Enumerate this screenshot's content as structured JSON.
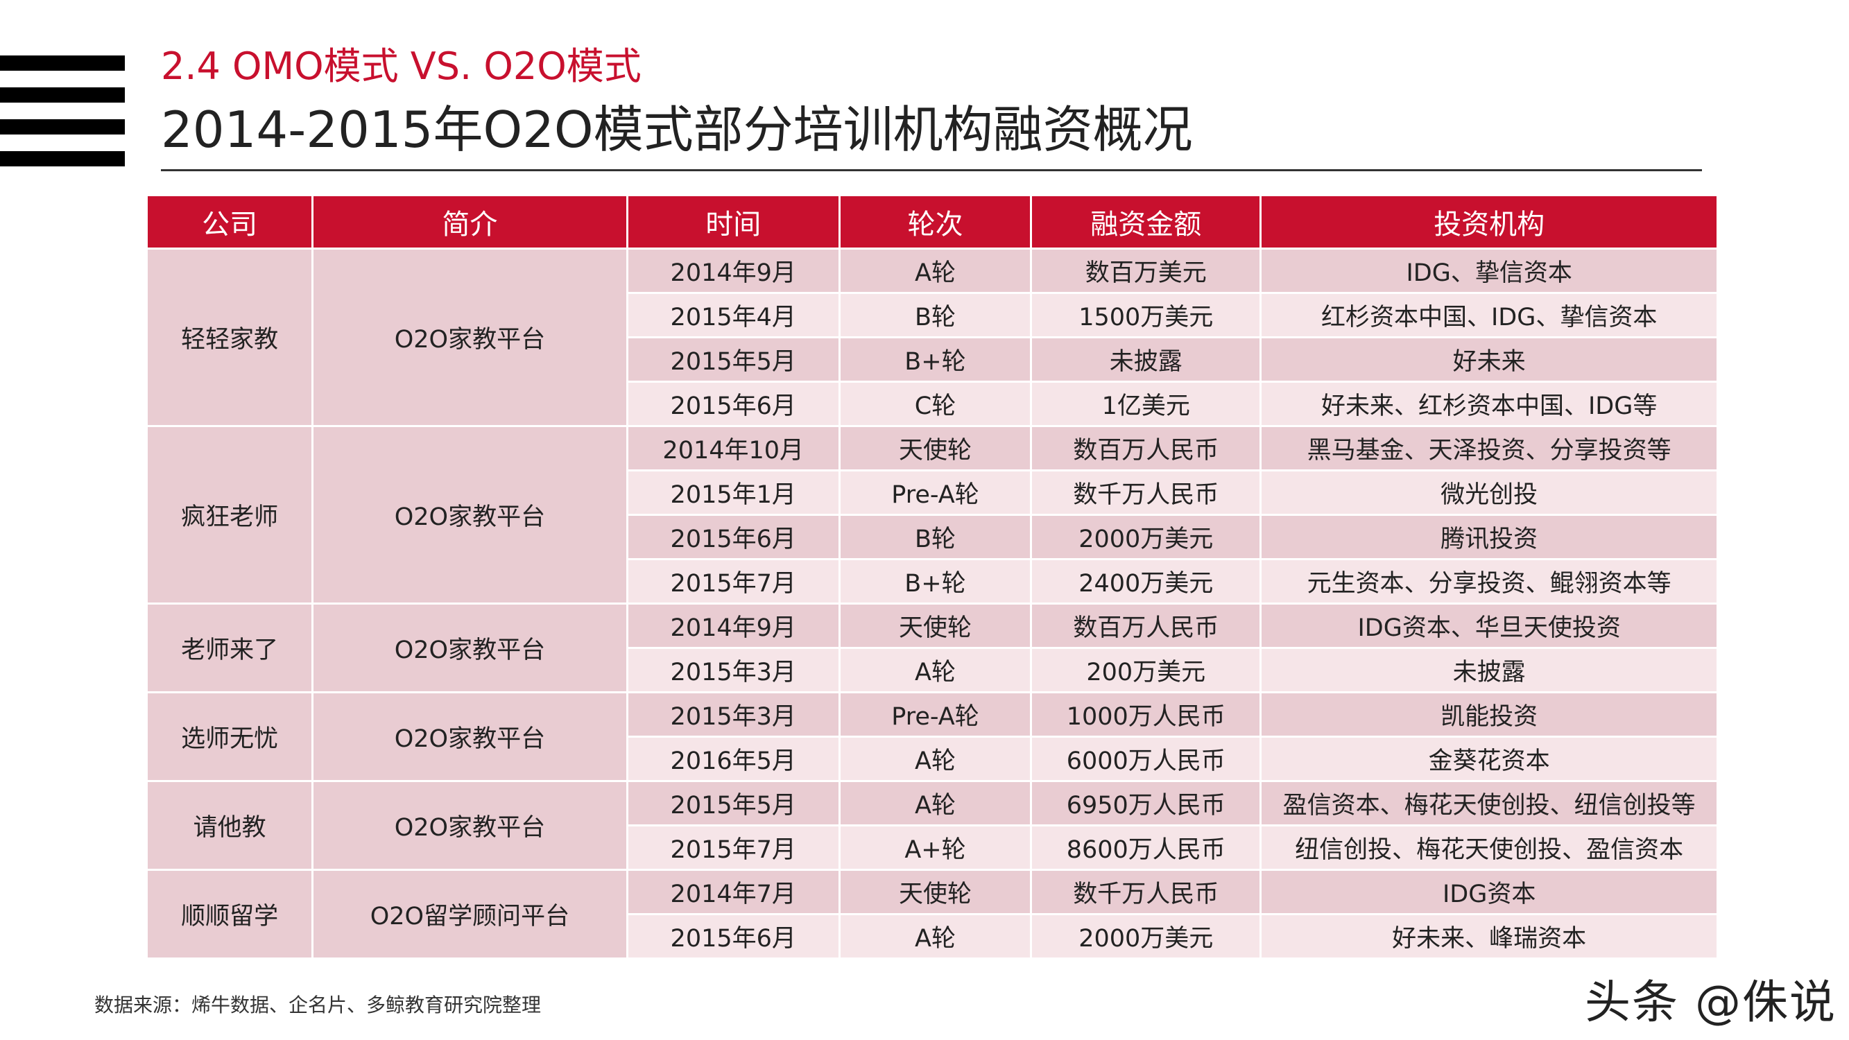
{
  "header": {
    "subtitle": "2.4 OMO模式 VS. O2O模式",
    "title": "2014-2015年O2O模式部分培训机构融资概况"
  },
  "table": {
    "headers": [
      "公司",
      "简介",
      "时间",
      "轮次",
      "融资金额",
      "投资机构"
    ],
    "groups": [
      {
        "company": "轻轻家教",
        "intro": "O2O家教平台",
        "rows": [
          {
            "time": "2014年9月",
            "round": "A轮",
            "amount": "数百万美元",
            "investors": "IDG、挚信资本"
          },
          {
            "time": "2015年4月",
            "round": "B轮",
            "amount": "1500万美元",
            "investors": "红杉资本中国、IDG、挚信资本"
          },
          {
            "time": "2015年5月",
            "round": "B+轮",
            "amount": "未披露",
            "investors": "好未来"
          },
          {
            "time": "2015年6月",
            "round": "C轮",
            "amount": "1亿美元",
            "investors": "好未来、红杉资本中国、IDG等"
          }
        ]
      },
      {
        "company": "疯狂老师",
        "intro": "O2O家教平台",
        "rows": [
          {
            "time": "2014年10月",
            "round": "天使轮",
            "amount": "数百万人民币",
            "investors": "黑马基金、天泽投资、分享投资等"
          },
          {
            "time": "2015年1月",
            "round": "Pre-A轮",
            "amount": "数千万人民币",
            "investors": "微光创投"
          },
          {
            "time": "2015年6月",
            "round": "B轮",
            "amount": "2000万美元",
            "investors": "腾讯投资"
          },
          {
            "time": "2015年7月",
            "round": "B+轮",
            "amount": "2400万美元",
            "investors": "元生资本、分享投资、鲲翎资本等"
          }
        ]
      },
      {
        "company": "老师来了",
        "intro": "O2O家教平台",
        "rows": [
          {
            "time": "2014年9月",
            "round": "天使轮",
            "amount": "数百万人民币",
            "investors": "IDG资本、华旦天使投资"
          },
          {
            "time": "2015年3月",
            "round": "A轮",
            "amount": "200万美元",
            "investors": "未披露"
          }
        ]
      },
      {
        "company": "选师无忧",
        "intro": "O2O家教平台",
        "rows": [
          {
            "time": "2015年3月",
            "round": "Pre-A轮",
            "amount": "1000万人民币",
            "investors": "凯能投资"
          },
          {
            "time": "2016年5月",
            "round": "A轮",
            "amount": "6000万人民币",
            "investors": "金葵花资本"
          }
        ]
      },
      {
        "company": "请他教",
        "intro": "O2O家教平台",
        "rows": [
          {
            "time": "2015年5月",
            "round": "A轮",
            "amount": "6950万人民币",
            "investors": "盈信资本、梅花天使创投、纽信创投等"
          },
          {
            "time": "2015年7月",
            "round": "A+轮",
            "amount": "8600万人民币",
            "investors": "纽信创投、梅花天使创投、盈信资本"
          }
        ]
      },
      {
        "company": "顺顺留学",
        "intro": "O2O留学顾问平台",
        "rows": [
          {
            "time": "2014年7月",
            "round": "天使轮",
            "amount": "数千万人民币",
            "investors": "IDG资本"
          },
          {
            "time": "2015年6月",
            "round": "A轮",
            "amount": "2000万美元",
            "investors": "好未来、峰瑞资本"
          }
        ]
      }
    ]
  },
  "footer": {
    "source": "数据来源：烯牛数据、企名片、多鲸教育研究院整理",
    "watermark": "头条 @侏说"
  }
}
